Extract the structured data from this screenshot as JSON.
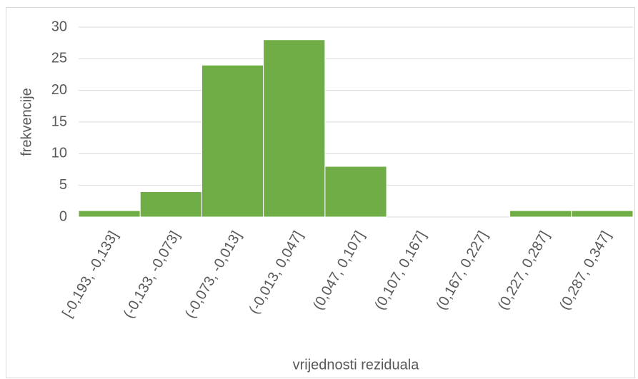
{
  "chart_data": {
    "type": "bar",
    "x_label": "vrijednosti reziduala",
    "y_label": "frekvencije",
    "categories": [
      "[-0,193, -0,133]",
      "(-0,133, -0,073]",
      "(-0,073, -0,013]",
      "(-0,013, 0,047]",
      "(0,047, 0,107]",
      "(0,107, 0,167]",
      "(0,167, 0,227]",
      "(0,227, 0,287]",
      "(0,287, 0,347]"
    ],
    "values": [
      1,
      4,
      24,
      28,
      8,
      0,
      0,
      1,
      1
    ],
    "color": "#70ad47",
    "ylim": [
      0,
      30
    ],
    "yticks": [
      0,
      5,
      10,
      15,
      20,
      25,
      30
    ],
    "grid": true
  }
}
